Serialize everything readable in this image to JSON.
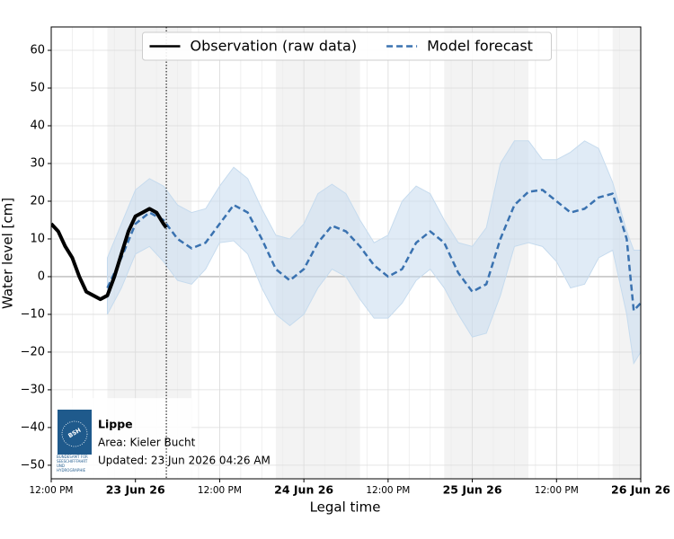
{
  "chart_data": {
    "type": "line",
    "ylabel": "Water level [cm]",
    "xlabel": "Legal time",
    "xlim": [
      0,
      84
    ],
    "ylim": [
      -53.6,
      66.2
    ],
    "xticks": [
      {
        "value": 0,
        "label": "12:00 PM"
      },
      {
        "value": 12,
        "label": "23 Jun 26"
      },
      {
        "value": 24,
        "label": "12:00 PM"
      },
      {
        "value": 36,
        "label": "24 Jun 26"
      },
      {
        "value": 48,
        "label": "12:00 PM"
      },
      {
        "value": 60,
        "label": "25 Jun 26"
      },
      {
        "value": 72,
        "label": "12:00 PM"
      },
      {
        "value": 84,
        "label": "26 Jun 26"
      }
    ],
    "yticks": [
      {
        "value": -50,
        "label": "−50"
      },
      {
        "value": -40,
        "label": "−40"
      },
      {
        "value": -30,
        "label": "−30"
      },
      {
        "value": -20,
        "label": "−20"
      },
      {
        "value": -10,
        "label": "−10"
      },
      0,
      10,
      20,
      30,
      40,
      50,
      60
    ],
    "grid": true,
    "legend": "top",
    "shaded_periods": [
      [
        8,
        20
      ],
      [
        32,
        44
      ],
      [
        56,
        68
      ],
      [
        80,
        84
      ]
    ],
    "now_line": 16.4,
    "series": [
      {
        "name": "Observation (raw data)",
        "color": "#000000",
        "style": "solid",
        "x": [
          0,
          1,
          2,
          3,
          4,
          5,
          6,
          7,
          8,
          9,
          10,
          11,
          12,
          13,
          14,
          15,
          16,
          16.4
        ],
        "values": [
          14,
          12,
          8,
          5,
          0,
          -4,
          -5,
          -6,
          -5,
          0,
          6,
          12,
          16,
          17,
          18,
          17,
          14,
          13
        ]
      },
      {
        "name": "Model forecast",
        "color": "#3a72b0",
        "style": "dashed",
        "x": [
          8,
          10,
          12,
          14,
          16,
          18,
          20,
          22,
          24,
          26,
          28,
          30,
          32,
          34,
          36,
          38,
          40,
          42,
          44,
          46,
          48,
          50,
          52,
          54,
          56,
          58,
          60,
          62,
          64,
          66,
          68,
          70,
          72,
          74,
          76,
          78,
          80,
          82,
          83,
          84
        ],
        "values": [
          -3,
          5,
          14,
          17,
          15,
          10,
          7.5,
          9,
          14,
          19,
          17,
          10,
          2,
          -1,
          2,
          9,
          13.5,
          12,
          8,
          3,
          0,
          2,
          9,
          12,
          9,
          1,
          -4,
          -2,
          10,
          19,
          22.5,
          23,
          20,
          17,
          18,
          21,
          22,
          10,
          -9,
          -7
        ]
      }
    ],
    "band": {
      "color": "#c6dbee",
      "x": [
        8,
        10,
        12,
        14,
        16,
        18,
        20,
        22,
        24,
        26,
        28,
        30,
        32,
        34,
        36,
        38,
        40,
        42,
        44,
        46,
        48,
        50,
        52,
        54,
        56,
        58,
        60,
        62,
        64,
        66,
        68,
        70,
        72,
        74,
        76,
        78,
        80,
        82,
        83,
        84
      ],
      "upper": [
        5,
        14,
        23,
        26,
        24,
        19,
        17,
        18,
        24,
        29,
        26,
        18,
        11,
        10,
        14,
        22,
        24.5,
        22,
        15,
        9,
        11,
        20,
        24,
        22,
        15,
        9,
        8,
        13,
        30,
        36,
        36,
        31,
        31,
        33,
        36,
        34,
        25,
        12,
        7,
        7
      ],
      "lower": [
        -10,
        -3,
        6,
        8,
        4,
        -1,
        -2,
        2,
        9,
        9.5,
        6,
        -3,
        -10,
        -13,
        -10,
        -3,
        2,
        0,
        -6,
        -11,
        -11,
        -7,
        -1,
        2,
        -3,
        -10,
        -16,
        -15,
        -5,
        8,
        9,
        8,
        4,
        -3,
        -2,
        5,
        7,
        -10,
        -23,
        -20
      ]
    }
  },
  "info": {
    "logo": "BSH",
    "logo_caption": "BUNDESAMT FÜR SEESCHIFFFAHRT UND HYDROGRAPHIE",
    "station": "Lippe",
    "area": "Area: Kieler Bucht",
    "updated": "Updated: 23 Jun 2026 04:26 AM"
  }
}
